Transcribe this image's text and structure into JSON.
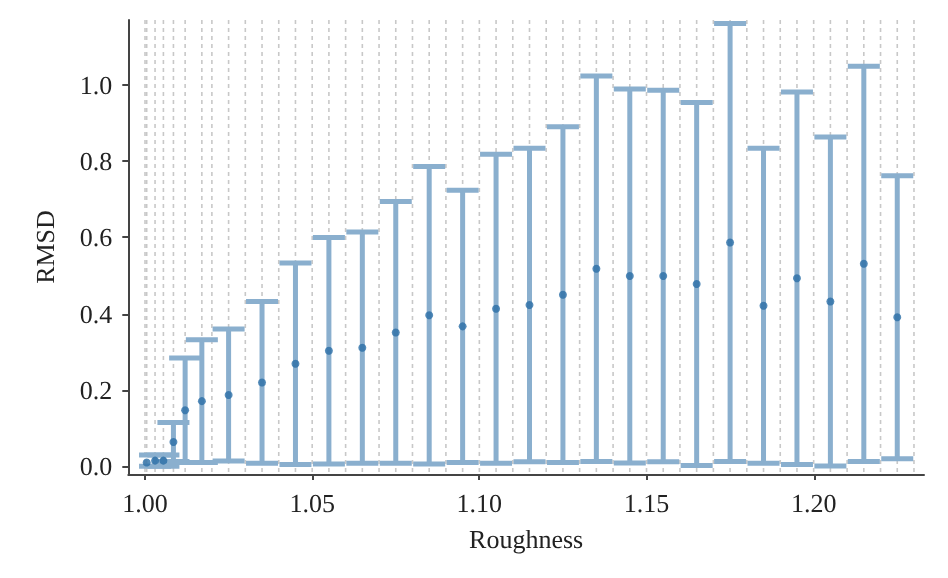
{
  "chart_data": {
    "type": "scatter",
    "xlabel": "Roughness",
    "ylabel": "RMSD",
    "x": [
      1.0005,
      1.003,
      1.0055,
      1.0085,
      1.012,
      1.017,
      1.025,
      1.035,
      1.045,
      1.055,
      1.065,
      1.075,
      1.085,
      1.095,
      1.105,
      1.115,
      1.125,
      1.135,
      1.145,
      1.155,
      1.165,
      1.175,
      1.185,
      1.195,
      1.205,
      1.215,
      1.225
    ],
    "values": [
      0.01,
      0.015,
      0.015,
      0.064,
      0.147,
      0.171,
      0.187,
      0.22,
      0.269,
      0.303,
      0.311,
      0.351,
      0.396,
      0.367,
      0.413,
      0.423,
      0.45,
      0.518,
      0.499,
      0.499,
      0.478,
      0.587,
      0.421,
      0.493,
      0.432,
      0.531,
      0.391
    ],
    "errors": [
      null,
      0.015,
      0.015,
      0.051,
      0.137,
      0.161,
      0.173,
      0.212,
      0.264,
      0.297,
      0.303,
      0.343,
      0.39,
      0.357,
      0.405,
      0.411,
      0.44,
      0.505,
      0.49,
      0.487,
      0.476,
      0.574,
      0.413,
      0.488,
      0.431,
      0.518,
      0.371
    ],
    "color": "#2b6ea6",
    "marker": "circle",
    "grid": "x",
    "xlim": [
      0.995,
      1.233
    ],
    "ylim": [
      -0.02,
      1.17
    ],
    "xticks": [
      {
        "value": 1.0,
        "label": "1.00"
      },
      {
        "value": 1.05,
        "label": "1.05"
      },
      {
        "value": 1.1,
        "label": "1.10"
      },
      {
        "value": 1.15,
        "label": "1.15"
      },
      {
        "value": 1.2,
        "label": "1.20"
      },
      {
        "value": 1.0005,
        "label": null
      },
      {
        "value": 1.003,
        "label": null
      },
      {
        "value": 1.0055,
        "label": null
      },
      {
        "value": 1.0085,
        "label": null
      },
      {
        "value": 1.012,
        "label": null
      },
      {
        "value": 1.017,
        "label": null
      },
      {
        "value": 1.02,
        "label": null
      },
      {
        "value": 1.025,
        "label": null
      },
      {
        "value": 1.03,
        "label": null
      },
      {
        "value": 1.035,
        "label": null
      },
      {
        "value": 1.04,
        "label": null
      },
      {
        "value": 1.045,
        "label": null
      },
      {
        "value": 1.055,
        "label": null
      },
      {
        "value": 1.06,
        "label": null
      },
      {
        "value": 1.065,
        "label": null
      },
      {
        "value": 1.07,
        "label": null
      },
      {
        "value": 1.075,
        "label": null
      },
      {
        "value": 1.08,
        "label": null
      },
      {
        "value": 1.085,
        "label": null
      },
      {
        "value": 1.09,
        "label": null
      },
      {
        "value": 1.095,
        "label": null
      },
      {
        "value": 1.105,
        "label": null
      },
      {
        "value": 1.11,
        "label": null
      },
      {
        "value": 1.115,
        "label": null
      },
      {
        "value": 1.12,
        "label": null
      },
      {
        "value": 1.125,
        "label": null
      },
      {
        "value": 1.13,
        "label": null
      },
      {
        "value": 1.135,
        "label": null
      },
      {
        "value": 1.14,
        "label": null
      },
      {
        "value": 1.145,
        "label": null
      },
      {
        "value": 1.155,
        "label": null
      },
      {
        "value": 1.16,
        "label": null
      },
      {
        "value": 1.165,
        "label": null
      },
      {
        "value": 1.17,
        "label": null
      },
      {
        "value": 1.175,
        "label": null
      },
      {
        "value": 1.18,
        "label": null
      },
      {
        "value": 1.185,
        "label": null
      },
      {
        "value": 1.19,
        "label": null
      },
      {
        "value": 1.195,
        "label": null
      },
      {
        "value": 1.205,
        "label": null
      },
      {
        "value": 1.21,
        "label": null
      },
      {
        "value": 1.215,
        "label": null
      },
      {
        "value": 1.22,
        "label": null
      },
      {
        "value": 1.225,
        "label": null
      },
      {
        "value": 1.23,
        "label": null
      }
    ],
    "yticks": [
      {
        "value": 0,
        "label": "0.0"
      },
      {
        "value": 0.2,
        "label": "0.2"
      },
      {
        "value": 0.4,
        "label": "0.4"
      },
      {
        "value": 0.6,
        "label": "0.6"
      },
      {
        "value": 0.8,
        "label": "0.8"
      },
      {
        "value": 1.0,
        "label": "1.0"
      }
    ]
  }
}
